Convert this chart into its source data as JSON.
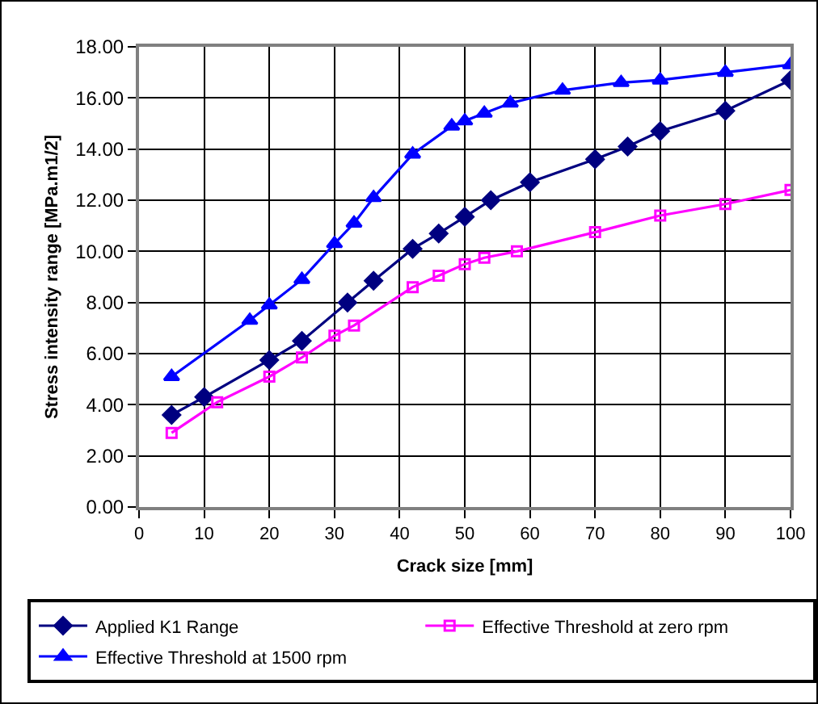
{
  "chart_data": {
    "type": "line",
    "xlabel": "Crack size [mm]",
    "ylabel": "Stress intensity range [MPa.m1/2]",
    "xlim": [
      0,
      100
    ],
    "xticks": [
      0,
      10,
      20,
      30,
      40,
      50,
      60,
      70,
      80,
      90,
      100
    ],
    "ylim": [
      0,
      18
    ],
    "yticks": [
      {
        "value": 0,
        "label": "0.00"
      },
      {
        "value": 2,
        "label": "2.00"
      },
      {
        "value": 4,
        "label": "4.00"
      },
      {
        "value": 6,
        "label": "6.00"
      },
      {
        "value": 8,
        "label": "8.00"
      },
      {
        "value": 10,
        "label": "10.00"
      },
      {
        "value": 12,
        "label": "12.00"
      },
      {
        "value": 14,
        "label": "14.00"
      },
      {
        "value": 16,
        "label": "16.00"
      },
      {
        "value": 18,
        "label": "18.00"
      }
    ],
    "grid": true,
    "legend": "bottom",
    "line_style": "solid",
    "series": [
      {
        "name": "Applied K1 Range",
        "color": "#000080",
        "marker": "diamond",
        "x": [
          5,
          10,
          20,
          25,
          32,
          36,
          42,
          46,
          50,
          54,
          60,
          70,
          75,
          80,
          90,
          100
        ],
        "values": [
          3.6,
          4.3,
          5.75,
          6.5,
          8.0,
          8.85,
          10.1,
          10.7,
          11.35,
          12.0,
          12.7,
          13.6,
          14.1,
          14.7,
          15.5,
          16.7
        ]
      },
      {
        "name": "Effective Threshold at zero rpm",
        "color": "#ff00ff",
        "marker": "square",
        "x": [
          5,
          12,
          20,
          25,
          30,
          33,
          42,
          46,
          50,
          53,
          58,
          70,
          80,
          90,
          100
        ],
        "values": [
          2.9,
          4.1,
          5.1,
          5.85,
          6.7,
          7.1,
          8.6,
          9.05,
          9.5,
          9.75,
          10.0,
          10.75,
          11.4,
          11.85,
          12.4
        ]
      },
      {
        "name": "Effective Threshold at 1500 rpm",
        "color": "#0000ff",
        "marker": "triangle",
        "x": [
          5,
          17,
          20,
          25,
          30,
          33,
          36,
          42,
          48,
          50,
          53,
          57,
          65,
          74,
          80,
          90,
          100
        ],
        "values": [
          5.1,
          7.3,
          7.9,
          8.9,
          10.3,
          11.1,
          12.1,
          13.8,
          14.9,
          15.1,
          15.4,
          15.8,
          16.3,
          16.6,
          16.7,
          17.0,
          17.3
        ]
      }
    ]
  }
}
